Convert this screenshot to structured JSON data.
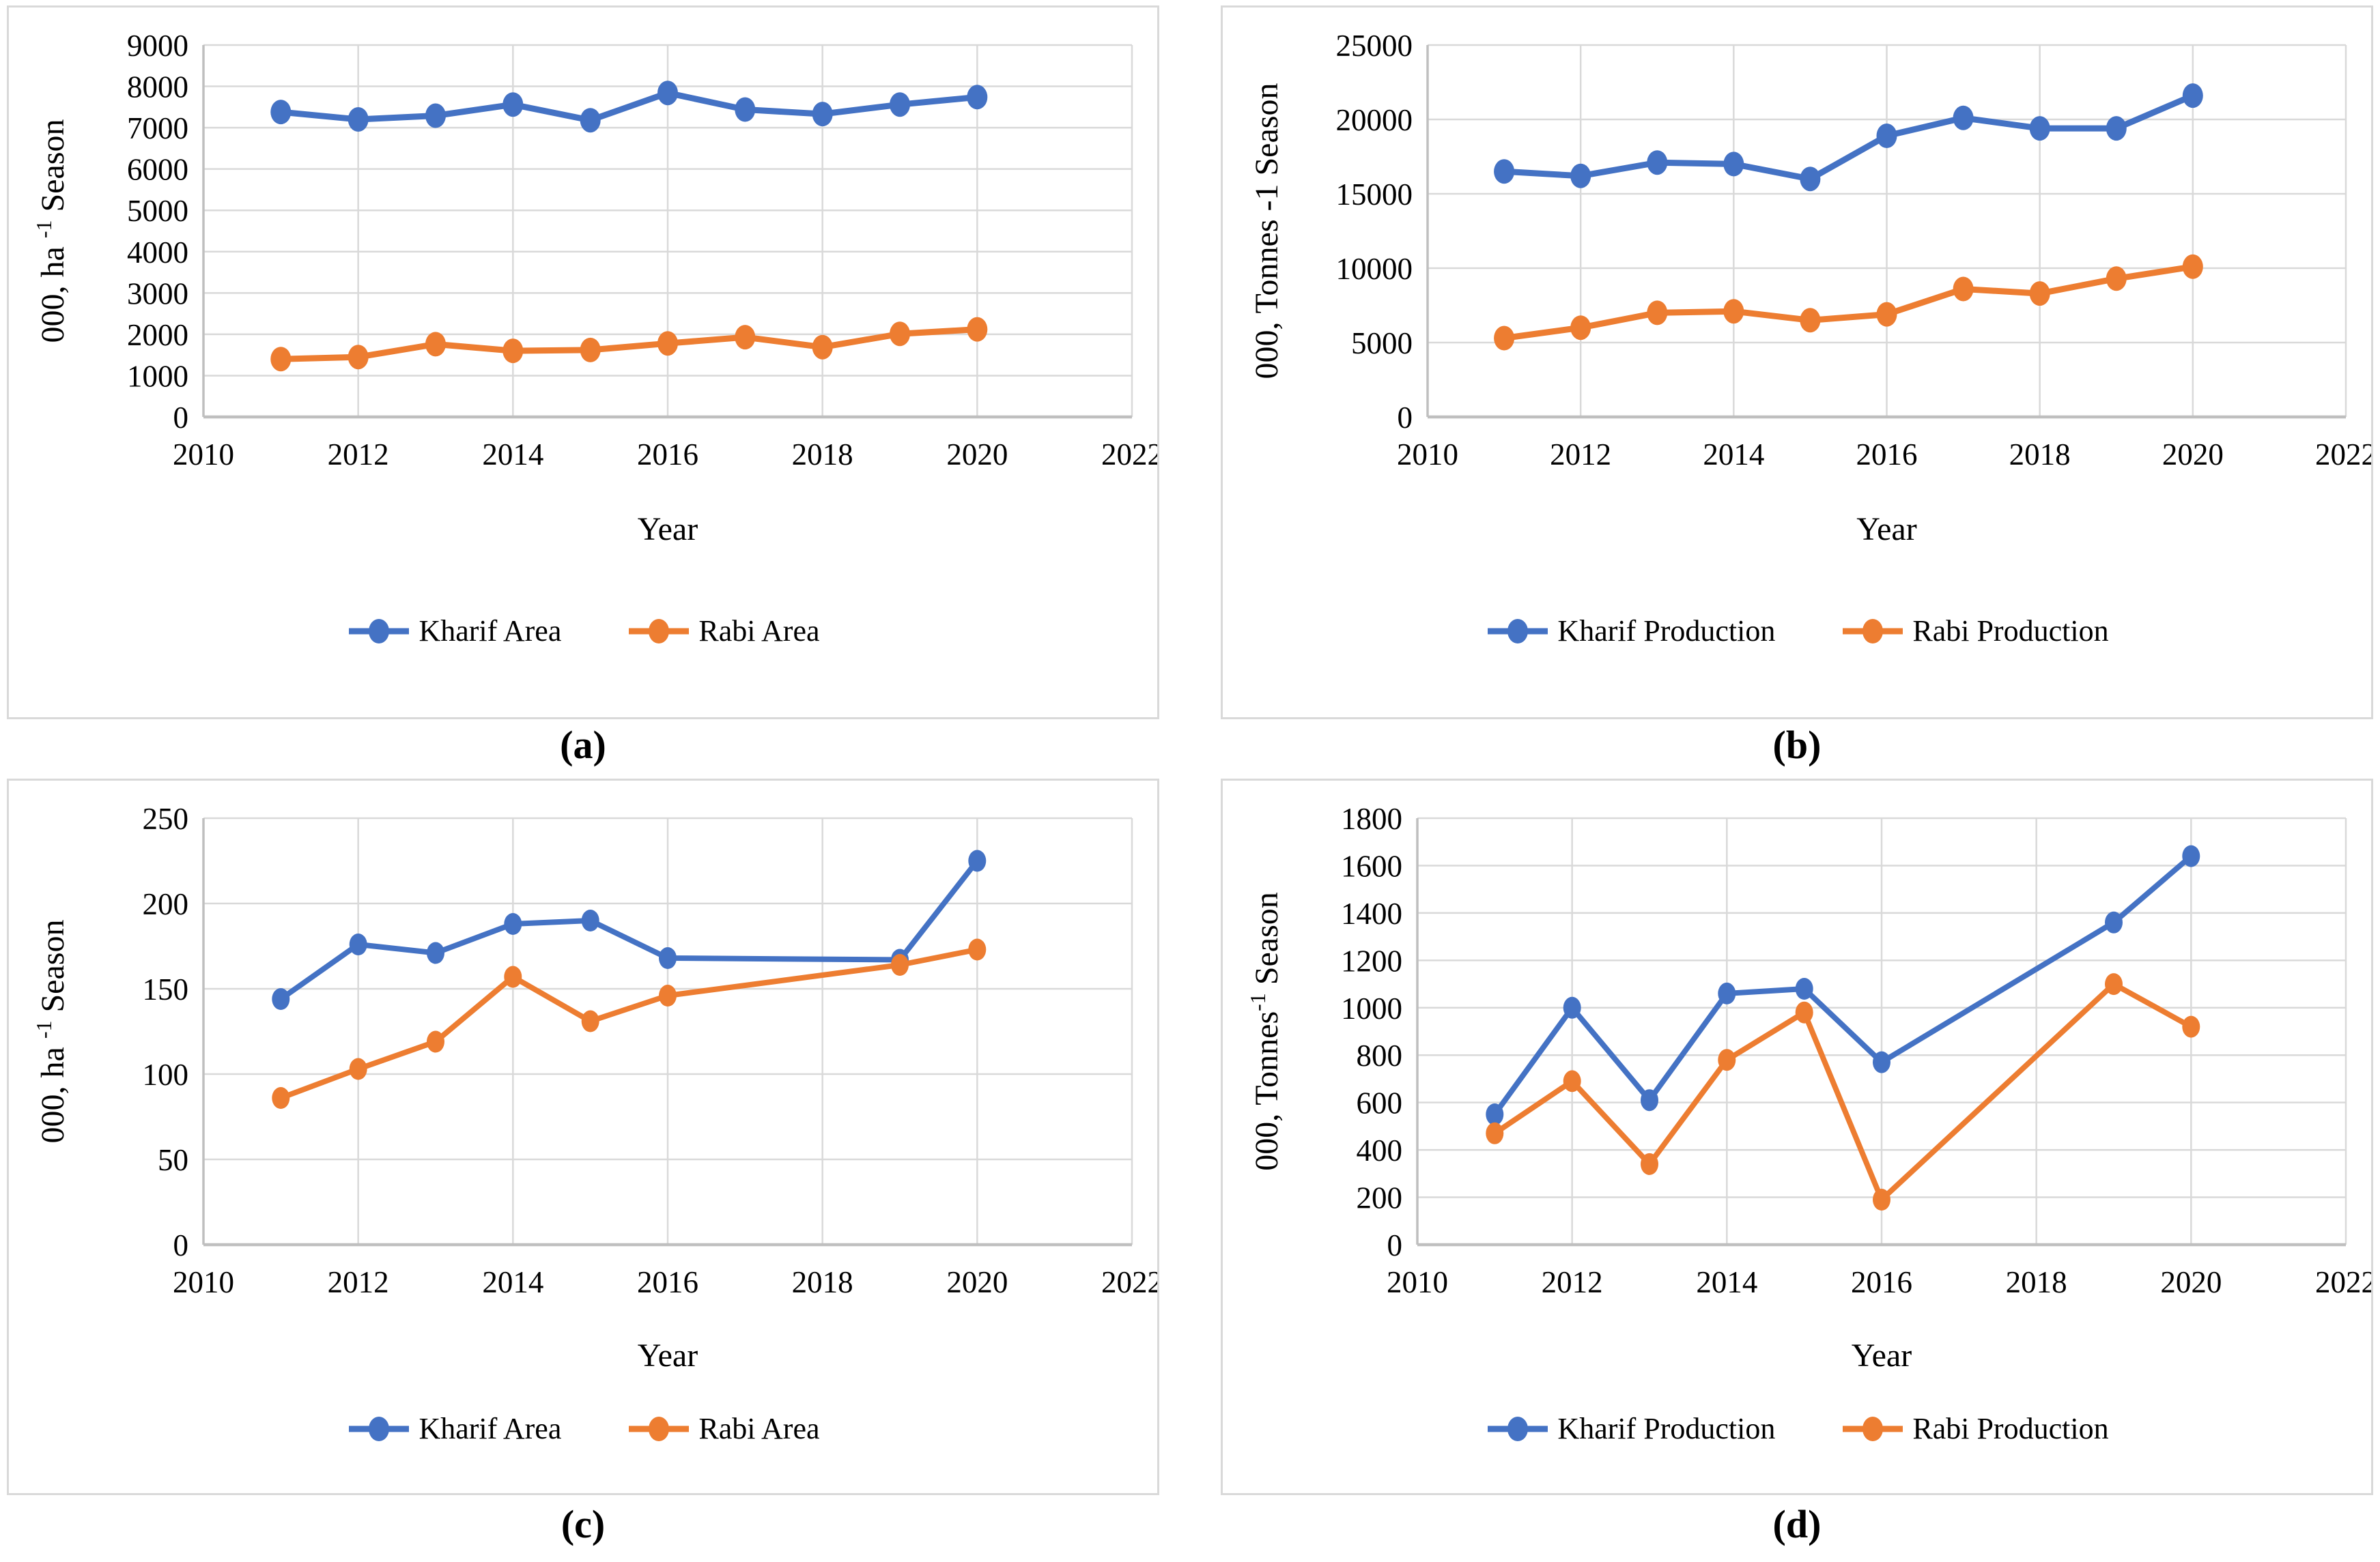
{
  "figure": {
    "description": "Four line charts comparing Kharif and Rabi seasons",
    "captions": [
      "(a)",
      "(b)",
      "(c)",
      "(d)"
    ]
  },
  "colors": {
    "kharif": "#4472C4",
    "rabi": "#ED7D31",
    "gridline": "#D9D9D9",
    "axis_line": "#BFBFBF",
    "panel_border": "#D9D9D9",
    "text": "#000000",
    "background": "#FFFFFF"
  },
  "chart_data": [
    {
      "id": "a",
      "type": "line",
      "caption": "(a)",
      "xlabel": "Year",
      "ylabel": "000, ha ⁻¹ Season",
      "ylabel_parts": {
        "main": "000, ha ",
        "sup": "-1",
        "rest": " Season"
      },
      "xlim": [
        2010,
        2022
      ],
      "x_ticks": [
        2010,
        2012,
        2014,
        2016,
        2018,
        2020,
        2022
      ],
      "ylim": [
        0,
        9000
      ],
      "y_step": 1000,
      "grid": true,
      "legend_position": "bottom",
      "series": [
        {
          "name": "Kharif Area",
          "color": "#4472C4",
          "x": [
            2011,
            2012,
            2013,
            2014,
            2015,
            2016,
            2017,
            2018,
            2019,
            2020
          ],
          "y": [
            7380,
            7200,
            7290,
            7560,
            7180,
            7840,
            7440,
            7330,
            7560,
            7740
          ]
        },
        {
          "name": "Rabi Area",
          "color": "#ED7D31",
          "x": [
            2011,
            2012,
            2013,
            2014,
            2015,
            2016,
            2017,
            2018,
            2019,
            2020
          ],
          "y": [
            1400,
            1450,
            1760,
            1600,
            1620,
            1780,
            1930,
            1690,
            2010,
            2120
          ]
        }
      ],
      "layout": {
        "plot_left": 285,
        "plot_right": 1645,
        "plot_top": 55,
        "plot_bottom": 600,
        "xlabel_y": 670,
        "year_y": 780,
        "ytitle_x": 80,
        "marker_rx": 15,
        "marker_ry": 18,
        "line_w": 9
      }
    },
    {
      "id": "b",
      "type": "line",
      "caption": "(b)",
      "xlabel": "Year",
      "ylabel": "000, Tonnes -1 Season",
      "ylabel_parts": {
        "main": "000, Tonnes -1 Season",
        "sup": "",
        "rest": ""
      },
      "xlim": [
        2010,
        2022
      ],
      "x_ticks": [
        2010,
        2012,
        2014,
        2016,
        2018,
        2020,
        2022
      ],
      "ylim": [
        0,
        25000
      ],
      "y_step": 5000,
      "grid": true,
      "legend_position": "bottom",
      "series": [
        {
          "name": "Kharif Production",
          "color": "#4472C4",
          "x": [
            2011,
            2012,
            2013,
            2014,
            2015,
            2016,
            2017,
            2018,
            2019,
            2020
          ],
          "y": [
            16500,
            16200,
            17100,
            17000,
            16000,
            18900,
            20100,
            19400,
            19400,
            21600
          ]
        },
        {
          "name": "Rabi Production",
          "color": "#ED7D31",
          "x": [
            2011,
            2012,
            2013,
            2014,
            2015,
            2016,
            2017,
            2018,
            2019,
            2020
          ],
          "y": [
            5300,
            6000,
            7000,
            7100,
            6500,
            6900,
            8600,
            8300,
            9300,
            10100
          ]
        }
      ],
      "layout": {
        "plot_left": 300,
        "plot_right": 1645,
        "plot_top": 55,
        "plot_bottom": 600,
        "xlabel_y": 670,
        "year_y": 780,
        "ytitle_x": 80,
        "marker_rx": 15,
        "marker_ry": 18,
        "line_w": 9
      }
    },
    {
      "id": "c",
      "type": "line",
      "caption": "(c)",
      "xlabel": "Year",
      "ylabel": "000, ha ⁻¹ Season",
      "ylabel_parts": {
        "main": "000, ha ",
        "sup": "-1",
        "rest": " Season"
      },
      "xlim": [
        2010,
        2022
      ],
      "x_ticks": [
        2010,
        2012,
        2014,
        2016,
        2018,
        2020,
        2022
      ],
      "ylim": [
        0,
        250
      ],
      "y_step": 50,
      "grid": true,
      "legend_position": "bottom",
      "note": "no data markers for 2017 and 2018; lines connect 2016 to 2019",
      "series": [
        {
          "name": "Kharif Area",
          "color": "#4472C4",
          "x": [
            2011,
            2012,
            2013,
            2014,
            2015,
            2016,
            2019,
            2020
          ],
          "y": [
            144,
            176,
            171,
            188,
            190,
            168,
            167,
            225
          ]
        },
        {
          "name": "Rabi Area",
          "color": "#ED7D31",
          "x": [
            2011,
            2012,
            2013,
            2014,
            2015,
            2016,
            2019,
            2020
          ],
          "y": [
            86,
            103,
            119,
            157,
            131,
            146,
            164,
            173
          ]
        }
      ],
      "layout": {
        "plot_left": 285,
        "plot_right": 1645,
        "plot_top": 55,
        "plot_bottom": 680,
        "xlabel_y": 750,
        "year_y": 858,
        "ytitle_x": 80,
        "marker_rx": 13,
        "marker_ry": 16,
        "line_w": 8
      }
    },
    {
      "id": "d",
      "type": "line",
      "caption": "(d)",
      "xlabel": "Year",
      "ylabel": "000, Tonnes⁻¹ Season",
      "ylabel_parts": {
        "main": "000, Tonnes",
        "sup": "-1",
        "rest": " Season"
      },
      "xlim": [
        2010,
        2022
      ],
      "x_ticks": [
        2010,
        2012,
        2014,
        2016,
        2018,
        2020,
        2022
      ],
      "ylim": [
        0,
        1800
      ],
      "y_step": 200,
      "grid": true,
      "legend_position": "bottom",
      "note": "no data markers for 2017 and 2018; lines connect 2016 to 2019",
      "series": [
        {
          "name": "Kharif Production",
          "color": "#4472C4",
          "x": [
            2011,
            2012,
            2013,
            2014,
            2015,
            2016,
            2019,
            2020
          ],
          "y": [
            550,
            1000,
            610,
            1060,
            1080,
            770,
            1360,
            1640
          ]
        },
        {
          "name": "Rabi Production",
          "color": "#ED7D31",
          "x": [
            2011,
            2012,
            2013,
            2014,
            2015,
            2016,
            2019,
            2020
          ],
          "y": [
            470,
            690,
            340,
            780,
            980,
            190,
            1100,
            920
          ]
        }
      ],
      "layout": {
        "plot_left": 285,
        "plot_right": 1645,
        "plot_top": 55,
        "plot_bottom": 680,
        "xlabel_y": 750,
        "year_y": 858,
        "ytitle_x": 80,
        "marker_rx": 13,
        "marker_ry": 16,
        "line_w": 8
      }
    }
  ]
}
